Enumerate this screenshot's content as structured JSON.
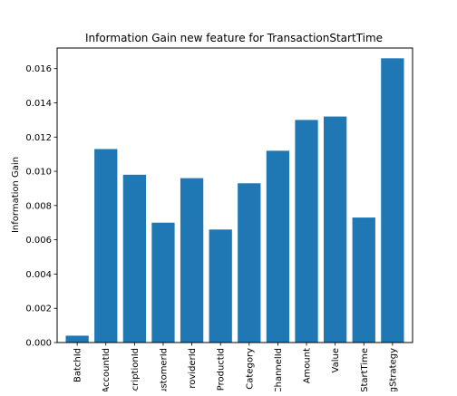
{
  "chart_data": {
    "type": "bar",
    "title": "Information Gain new feature for TransactionStartTime",
    "xlabel": "",
    "ylabel": "Information Gain",
    "ylim": [
      0,
      0.0172
    ],
    "yticks": [
      0.0,
      0.002,
      0.004,
      0.006,
      0.008,
      0.01,
      0.012,
      0.014,
      0.016
    ],
    "ytick_labels": [
      "0.000",
      "0.002",
      "0.004",
      "0.006",
      "0.008",
      "0.010",
      "0.012",
      "0.014",
      "0.016"
    ],
    "categories": [
      "BatchId",
      "AccountId",
      "SubscriptionId",
      "CustomerId",
      "ProviderId",
      "ProductId",
      "ProductCategory",
      "ChannelId",
      "Amount",
      "Value",
      "TransactionStartTime",
      "PricingStrategy"
    ],
    "tick_labels_visible": [
      "BatchId",
      "AccountId",
      "scriptionId",
      "ustomerId",
      "roviderId",
      "ProductId",
      "Category",
      "ChannelId",
      "Amount",
      "Value",
      "StartTime",
      "gStrategy"
    ],
    "values": [
      0.0004,
      0.0113,
      0.0098,
      0.007,
      0.0096,
      0.0066,
      0.0093,
      0.0112,
      0.013,
      0.0132,
      0.0073,
      0.0166
    ],
    "bar_color": "#1f77b4",
    "grid": false,
    "legend": "none"
  }
}
